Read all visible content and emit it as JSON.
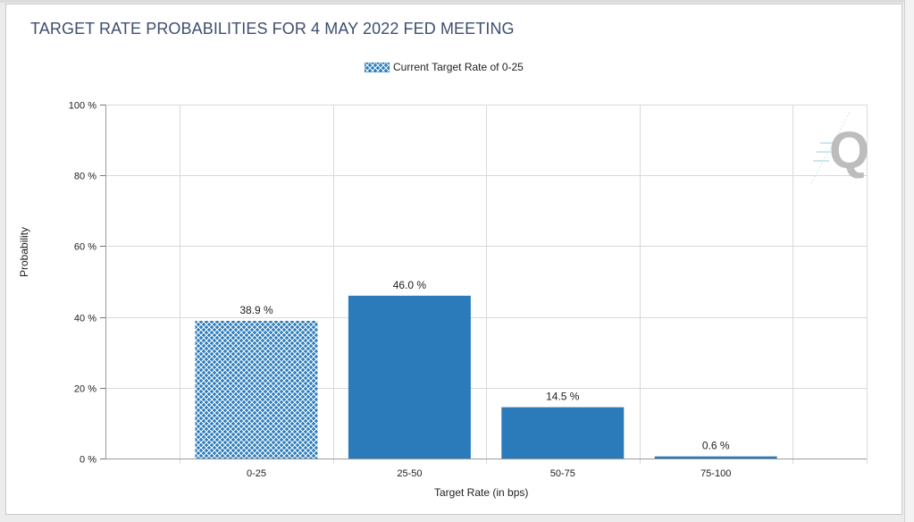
{
  "title": "TARGET RATE PROBABILITIES FOR 4 MAY 2022 FED MEETING",
  "legend": {
    "label": "Current Target Rate of 0-25"
  },
  "watermark": "Q",
  "colors": {
    "bar": "#2b7bba",
    "hatch_line": "#ffffff",
    "grid": "#d9d9d9",
    "title": "#3d4f6e"
  },
  "chart_data": {
    "type": "bar",
    "title": "TARGET RATE PROBABILITIES FOR 4 MAY 2022 FED MEETING",
    "xlabel": "Target Rate (in bps)",
    "ylabel": "Probability",
    "categories": [
      "0-25",
      "25-50",
      "50-75",
      "75-100"
    ],
    "values": [
      38.9,
      46.0,
      14.5,
      0.6
    ],
    "data_labels": [
      "38.9 %",
      "46.0 %",
      "14.5 %",
      "0.6 %"
    ],
    "highlighted_category": "0-25",
    "ylim": [
      0,
      100
    ],
    "yticks": [
      0,
      20,
      40,
      60,
      80,
      100
    ],
    "ytick_labels": [
      "0 %",
      "20 %",
      "40 %",
      "60 %",
      "80 %",
      "100 %"
    ],
    "grid": true,
    "legend_position": "top-center"
  }
}
